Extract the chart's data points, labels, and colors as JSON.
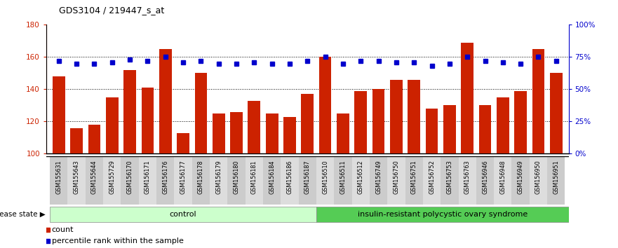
{
  "title": "GDS3104 / 219447_s_at",
  "samples": [
    "GSM155631",
    "GSM155643",
    "GSM155644",
    "GSM155729",
    "GSM156170",
    "GSM156171",
    "GSM156176",
    "GSM156177",
    "GSM156178",
    "GSM156179",
    "GSM156180",
    "GSM156181",
    "GSM156184",
    "GSM156186",
    "GSM156187",
    "GSM156510",
    "GSM156511",
    "GSM156512",
    "GSM156749",
    "GSM156750",
    "GSM156751",
    "GSM156752",
    "GSM156753",
    "GSM156763",
    "GSM156946",
    "GSM156948",
    "GSM156949",
    "GSM156950",
    "GSM156951"
  ],
  "counts": [
    148,
    116,
    118,
    135,
    152,
    141,
    165,
    113,
    150,
    125,
    126,
    133,
    125,
    123,
    137,
    160,
    125,
    139,
    140,
    146,
    146,
    128,
    130,
    169,
    130,
    135,
    139,
    165,
    150
  ],
  "percentile_ranks": [
    72,
    70,
    70,
    71,
    73,
    72,
    75,
    71,
    72,
    70,
    70,
    71,
    70,
    70,
    72,
    75,
    70,
    72,
    72,
    71,
    71,
    68,
    70,
    75,
    72,
    71,
    70,
    75,
    72
  ],
  "control_count": 15,
  "disease_count": 14,
  "control_label": "control",
  "disease_label": "insulin-resistant polycystic ovary syndrome",
  "disease_state_label": "disease state",
  "bar_color": "#cc2200",
  "dot_color": "#0000cc",
  "control_bg": "#ccffcc",
  "disease_bg": "#55cc55",
  "ylim_left": [
    100,
    180
  ],
  "yticks_left": [
    100,
    120,
    140,
    160,
    180
  ],
  "yticks_right": [
    0,
    25,
    50,
    75,
    100
  ],
  "ytick_labels_right": [
    "0%",
    "25%",
    "50%",
    "75%",
    "100%"
  ],
  "legend_count_label": "count",
  "legend_pct_label": "percentile rank within the sample",
  "grid_lines": [
    120,
    140,
    160
  ],
  "bg_plot": "#ffffff"
}
